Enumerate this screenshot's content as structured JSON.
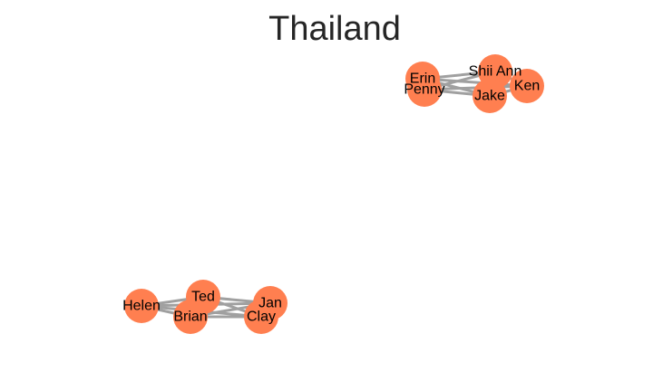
{
  "title": "Thailand",
  "colors": {
    "node_fill": "#ff7f50",
    "edge_stroke": "#a0a0a0",
    "label": "#000000",
    "title": "#262626"
  },
  "nodes": [
    {
      "id": "erin",
      "label": "Erin"
    },
    {
      "id": "penny",
      "label": "Penny"
    },
    {
      "id": "shii-ann",
      "label": "Shii Ann"
    },
    {
      "id": "jake",
      "label": "Jake"
    },
    {
      "id": "ken",
      "label": "Ken"
    },
    {
      "id": "helen",
      "label": "Helen"
    },
    {
      "id": "ted",
      "label": "Ted"
    },
    {
      "id": "brian",
      "label": "Brian"
    },
    {
      "id": "jan",
      "label": "Jan"
    },
    {
      "id": "clay",
      "label": "Clay"
    }
  ],
  "edges": [
    [
      "erin",
      "penny"
    ],
    [
      "erin",
      "shii-ann"
    ],
    [
      "erin",
      "jake"
    ],
    [
      "erin",
      "ken"
    ],
    [
      "penny",
      "shii-ann"
    ],
    [
      "penny",
      "jake"
    ],
    [
      "penny",
      "ken"
    ],
    [
      "shii-ann",
      "jake"
    ],
    [
      "shii-ann",
      "ken"
    ],
    [
      "jake",
      "ken"
    ],
    [
      "helen",
      "ted"
    ],
    [
      "helen",
      "brian"
    ],
    [
      "helen",
      "jan"
    ],
    [
      "helen",
      "clay"
    ],
    [
      "ted",
      "brian"
    ],
    [
      "ted",
      "jan"
    ],
    [
      "ted",
      "clay"
    ],
    [
      "brian",
      "jan"
    ],
    [
      "brian",
      "clay"
    ],
    [
      "jan",
      "clay"
    ]
  ]
}
